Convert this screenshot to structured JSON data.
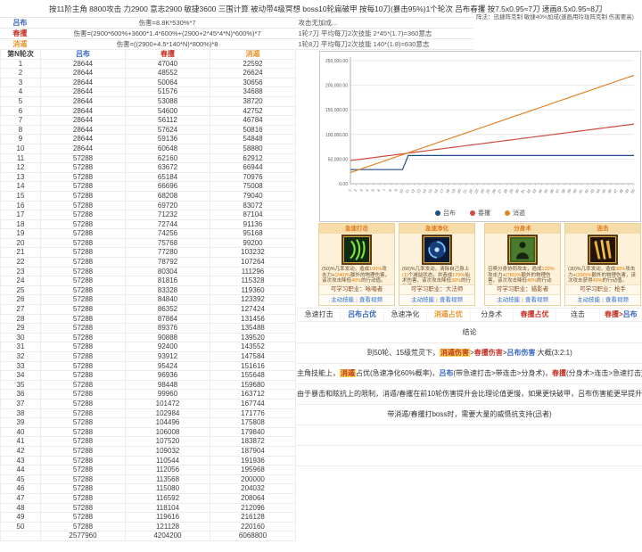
{
  "palette": {
    "blue": "#3465c0",
    "red": "#c9372c",
    "orange": "#e8962e",
    "link": "#2f6fd0",
    "highlight_bg": "#ffd24d"
  },
  "sheet": {
    "title": "按11阶主角 8800攻击 力2900 意志2900 敏捷3600 三围计算 被动带4级冥想 boss10轮扁破甲 按每10刀(暴击95%)1个轮次 吕布春攫 按7.5x0.95≈7刀 速画8.5x0.95≈8刀",
    "meta_rows": [
      {
        "label": "吕布",
        "formula": "伤害=8.8K*530%*7",
        "info": "攻击无加成..."
      },
      {
        "label": "春攫",
        "formula": "伤害=(2900*600%+3600*1.4*600%+(2900+2*45*4*N)*600%)*7",
        "info": "1轮7刀 平均每刀2次技能 2*45*(1.7)=360意志"
      },
      {
        "label": "消遁",
        "formula": "伤害=((2900+4.5*140*N)*800%)*8",
        "info": "1轮8刀 平均每刀2次技能 140*(1.8)=630意志"
      }
    ],
    "formation_note": "阵法：迅捷阵克制 敏捷40%加成(速画用玲珑阵克制 伤害要高)"
  },
  "table": {
    "headers": [
      "第N轮次",
      "吕布",
      "春攫",
      "消遁"
    ],
    "header_colors": [
      "#3d3d3d",
      "#3465c0",
      "#c9372c",
      "#e8962e"
    ],
    "rows": [
      [
        1,
        28644,
        47040,
        22592
      ],
      [
        2,
        28644,
        48552,
        26624
      ],
      [
        3,
        28644,
        50064,
        30656
      ],
      [
        4,
        28644,
        51576,
        34688
      ],
      [
        5,
        28644,
        53088,
        38720
      ],
      [
        6,
        28644,
        54600,
        42752
      ],
      [
        7,
        28644,
        56112,
        46784
      ],
      [
        8,
        28644,
        57624,
        50816
      ],
      [
        9,
        28644,
        59136,
        54848
      ],
      [
        10,
        28644,
        60648,
        58880
      ],
      [
        11,
        57288,
        62160,
        62912
      ],
      [
        12,
        57288,
        63672,
        66944
      ],
      [
        13,
        57288,
        65184,
        70976
      ],
      [
        14,
        57288,
        66696,
        75008
      ],
      [
        15,
        57288,
        68208,
        79040
      ],
      [
        16,
        57288,
        69720,
        83072
      ],
      [
        17,
        57288,
        71232,
        87104
      ],
      [
        18,
        57288,
        72744,
        91136
      ],
      [
        19,
        57288,
        74256,
        95168
      ],
      [
        20,
        57288,
        75768,
        99200
      ],
      [
        21,
        57288,
        77280,
        103232
      ],
      [
        22,
        57288,
        78792,
        107264
      ],
      [
        23,
        57288,
        80304,
        111296
      ],
      [
        24,
        57288,
        81816,
        115328
      ],
      [
        25,
        57288,
        83328,
        119360
      ],
      [
        26,
        57288,
        84840,
        123392
      ],
      [
        27,
        57288,
        86352,
        127424
      ],
      [
        28,
        57288,
        87864,
        131456
      ],
      [
        29,
        57288,
        89376,
        135488
      ],
      [
        30,
        57288,
        90888,
        139520
      ],
      [
        31,
        57288,
        92400,
        143552
      ],
      [
        32,
        57288,
        93912,
        147584
      ],
      [
        33,
        57288,
        95424,
        151616
      ],
      [
        34,
        57288,
        96936,
        155648
      ],
      [
        35,
        57288,
        98448,
        159680
      ],
      [
        36,
        57288,
        99960,
        163712
      ],
      [
        37,
        57288,
        101472,
        167744
      ],
      [
        38,
        57288,
        102984,
        171776
      ],
      [
        39,
        57288,
        104496,
        175808
      ],
      [
        40,
        57288,
        106008,
        179840
      ],
      [
        41,
        57288,
        107520,
        183872
      ],
      [
        42,
        57288,
        109032,
        187904
      ],
      [
        43,
        57288,
        110544,
        191936
      ],
      [
        44,
        57288,
        112056,
        195968
      ],
      [
        45,
        57288,
        113568,
        200000
      ],
      [
        46,
        57288,
        115080,
        204032
      ],
      [
        47,
        57288,
        116592,
        208064
      ],
      [
        48,
        57288,
        118104,
        212096
      ],
      [
        49,
        57288,
        119616,
        216128
      ],
      [
        50,
        57288,
        121128,
        220160
      ]
    ],
    "totals": [
      "",
      2577960,
      4204200,
      6068800
    ]
  },
  "chart_data": {
    "type": "line",
    "x": [
      1,
      2,
      3,
      4,
      5,
      6,
      7,
      8,
      9,
      10,
      11,
      12,
      13,
      14,
      15,
      16,
      17,
      18,
      19,
      20,
      21,
      22,
      23,
      24,
      25,
      26,
      27,
      28,
      29,
      30,
      31,
      32,
      33,
      34,
      35,
      36,
      37,
      38,
      39,
      40,
      41,
      42,
      43,
      44,
      45,
      46,
      47,
      48,
      49,
      50
    ],
    "series": [
      {
        "name": "吕布",
        "color": "#1d4e89",
        "values": [
          28644,
          28644,
          28644,
          28644,
          28644,
          28644,
          28644,
          28644,
          28644,
          28644,
          57288,
          57288,
          57288,
          57288,
          57288,
          57288,
          57288,
          57288,
          57288,
          57288,
          57288,
          57288,
          57288,
          57288,
          57288,
          57288,
          57288,
          57288,
          57288,
          57288,
          57288,
          57288,
          57288,
          57288,
          57288,
          57288,
          57288,
          57288,
          57288,
          57288,
          57288,
          57288,
          57288,
          57288,
          57288,
          57288,
          57288,
          57288,
          57288,
          57288
        ]
      },
      {
        "name": "春攫",
        "color": "#cf4a3f",
        "values": [
          47040,
          48552,
          50064,
          51576,
          53088,
          54600,
          56112,
          57624,
          59136,
          60648,
          62160,
          63672,
          65184,
          66696,
          68208,
          69720,
          71232,
          72744,
          74256,
          75768,
          77280,
          78792,
          80304,
          81816,
          83328,
          84840,
          86352,
          87864,
          89376,
          90888,
          92400,
          93912,
          95424,
          96936,
          98448,
          99960,
          101472,
          102984,
          104496,
          106008,
          107520,
          109032,
          110544,
          112056,
          113568,
          115080,
          116592,
          118104,
          119616,
          121128
        ]
      },
      {
        "name": "消遁",
        "color": "#e2862a",
        "values": [
          22592,
          26624,
          30656,
          34688,
          38720,
          42752,
          46784,
          50816,
          54848,
          58880,
          62912,
          66944,
          70976,
          75008,
          79040,
          83072,
          87104,
          91136,
          95168,
          99200,
          103232,
          107264,
          111296,
          115328,
          119360,
          123392,
          127424,
          131456,
          135488,
          139520,
          143552,
          147584,
          151616,
          155648,
          159680,
          163712,
          167744,
          171776,
          175808,
          179840,
          183872,
          187904,
          191936,
          195968,
          200000,
          204032,
          208064,
          212096,
          216128,
          220160
        ]
      }
    ],
    "ylim": [
      0,
      250000
    ],
    "yticks": [
      "0.00",
      "50,000.00",
      "100,000.00",
      "150,000.00",
      "200,000.00",
      "250,000.00"
    ],
    "grid": true,
    "legend_position": "bottom"
  },
  "cards": [
    {
      "title": "急速打击",
      "icon": "green-claw-icon",
      "desc": [
        {
          "t": "(50)%几率发动，造成",
          "c": "n"
        },
        {
          "t": "100%",
          "c": "o"
        },
        {
          "t": "攻击力+",
          "c": "n"
        },
        {
          "t": "(240)%",
          "c": "o"
        },
        {
          "t": "额外的物理伤害，该次攻击降低",
          "c": "n"
        },
        {
          "t": "40%",
          "c": "o"
        },
        {
          "t": "的行动值。",
          "c": "n"
        }
      ],
      "class_line": "可学习职业：咏唱者",
      "links": [
        "主动技能",
        "查看视频"
      ],
      "link_sep": "|"
    },
    {
      "title": "急速净化",
      "icon": "blue-swirl-icon",
      "desc": [
        {
          "t": "(60)%几率发动，清除自己身上",
          "c": "n"
        },
        {
          "t": "(1)",
          "c": "o"
        },
        {
          "t": "个减益状态，并造成",
          "c": "n"
        },
        {
          "t": "170%",
          "c": "o"
        },
        {
          "t": "仙术伤害，该次攻击降低",
          "c": "n"
        },
        {
          "t": "30%",
          "c": "o"
        },
        {
          "t": "的行动值。",
          "c": "n"
        }
      ],
      "class_line": "可学习职业：大法师",
      "links": [
        "主动技能",
        "查看视频"
      ],
      "link_sep": "|"
    },
    {
      "title": "分身术",
      "icon": "clone-figure-icon",
      "desc": [
        {
          "t": "召唤分身协同攻击，造成",
          "c": "n"
        },
        {
          "t": "120%",
          "c": "o"
        },
        {
          "t": "攻击力+",
          "c": "n"
        },
        {
          "t": "(780)%",
          "c": "o"
        },
        {
          "t": "额外的物理伤害，该次攻击降低",
          "c": "n"
        },
        {
          "t": "40%",
          "c": "o"
        },
        {
          "t": "的行动值。",
          "c": "n"
        }
      ],
      "class_line": "可学习职业：猎影者",
      "links": [
        "主动技能",
        "查看视频"
      ],
      "link_sep": "|"
    },
    {
      "title": "连击",
      "icon": "gold-slash-icon",
      "desc": [
        {
          "t": "(30)%几率发动，造成",
          "c": "n"
        },
        {
          "t": "30%",
          "c": "o"
        },
        {
          "t": "攻击力+",
          "c": "n"
        },
        {
          "t": "(290)%",
          "c": "o"
        },
        {
          "t": "额外的物理伤害，该次攻击获得",
          "c": "n"
        },
        {
          "t": "40%",
          "c": "o"
        },
        {
          "t": "的行动值。",
          "c": "n"
        }
      ],
      "class_line": "可学习职业：枪手",
      "links": [
        "主动技能",
        "查看视频"
      ],
      "link_sep": "|"
    }
  ],
  "comparison": {
    "cells": [
      {
        "text": "急速打击",
        "color": "plain"
      },
      {
        "text": "吕布占优",
        "color": "blue"
      },
      {
        "text": "急速净化",
        "color": "plain"
      },
      {
        "text": "消遁占优",
        "color": "orange"
      },
      {
        "text": "分身术",
        "color": "plain"
      },
      {
        "text": "春攫占优",
        "color": "red"
      },
      {
        "text": "连击",
        "color": "plain"
      },
      {
        "parts": [
          {
            "t": "春攫>",
            "c": "red"
          },
          {
            "t": "吕布",
            "c": "blue"
          }
        ]
      }
    ]
  },
  "conclusion": {
    "heading": "结论",
    "lines": [
      [
        {
          "t": "到50轮、15级荒灵下，",
          "c": "n"
        },
        {
          "t": "消遁伤害",
          "c": "hl"
        },
        {
          "t": ">",
          "c": "n"
        },
        {
          "t": "春攫伤害",
          "c": "r"
        },
        {
          "t": ">",
          "c": "n"
        },
        {
          "t": "吕布伤害",
          "c": "b"
        },
        {
          "t": " 大概(3:2:1)",
          "c": "n"
        }
      ],
      [
        {
          "t": "主角技能上，",
          "c": "n"
        },
        {
          "t": "消遁",
          "c": "hl"
        },
        {
          "t": "占优(急速净化60%概率)，",
          "c": "n"
        },
        {
          "t": "吕布",
          "c": "b"
        },
        {
          "t": "(带急速打击>带连击>分身术)，",
          "c": "n"
        },
        {
          "t": "春攫",
          "c": "r"
        },
        {
          "t": "(分身术>连击>急速打击)",
          "c": "n"
        }
      ],
      [
        {
          "t": "由于暴击和眩抗上的限制，消遁/春攫在前10轮伤害提升会比理论值更慢，如果更快破甲，吕布伤害能更早提升",
          "c": "n"
        }
      ],
      [
        {
          "t": "带消遁/春攫打boss时，需要大量的威慑抗支持(迅者)",
          "c": "n"
        }
      ]
    ]
  }
}
